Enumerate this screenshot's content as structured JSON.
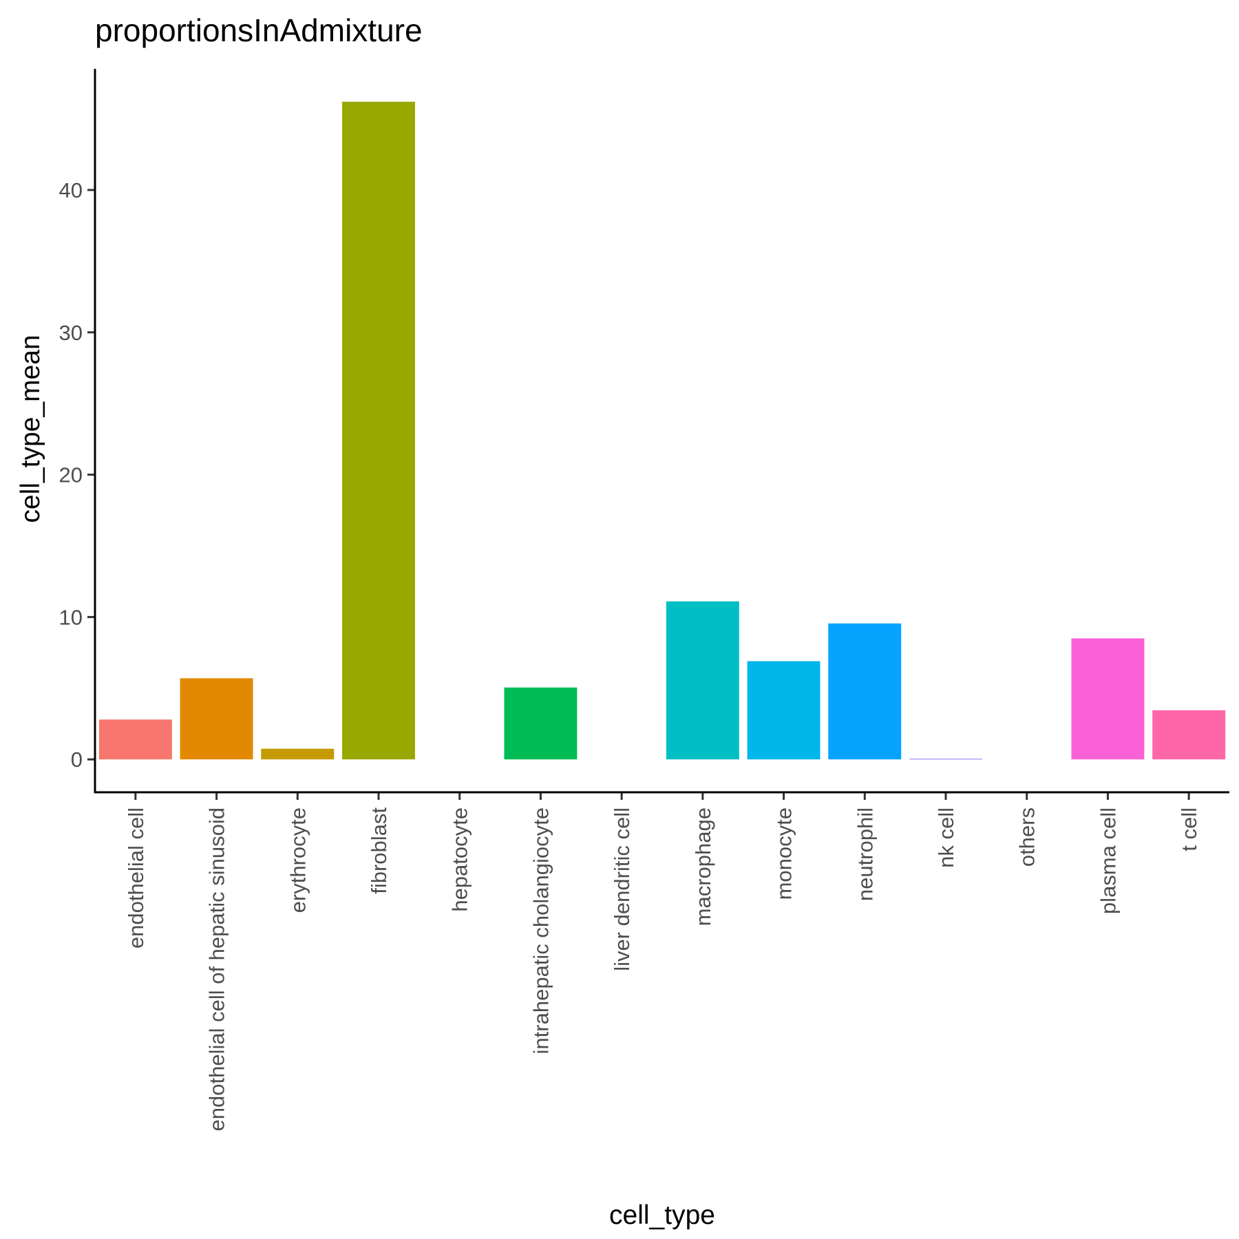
{
  "chart_data": {
    "type": "bar",
    "title": "proportionsInAdmixture",
    "xlabel": "cell_type",
    "ylabel": "cell_type_mean",
    "categories": [
      "endothelial cell",
      "endothelial cell of hepatic sinusoid",
      "erythrocyte",
      "fibroblast",
      "hepatocyte",
      "intrahepatic cholangiocyte",
      "liver dendritic cell",
      "macrophage",
      "monocyte",
      "neutrophil",
      "nk cell",
      "others",
      "plasma cell",
      "t cell"
    ],
    "values": [
      2.8,
      5.7,
      0.75,
      46.2,
      0,
      5.05,
      0,
      11.1,
      6.9,
      9.55,
      0.05,
      0,
      8.5,
      3.45
    ],
    "colors": [
      "#F8766D",
      "#E38900",
      "#C49A00",
      "#99A800",
      "#53B400",
      "#00BC56",
      "#00C094",
      "#00BFC4",
      "#00B6EB",
      "#06A4FF",
      "#A58AFF",
      "#DF70F8",
      "#FB61D7",
      "#FF66A8"
    ],
    "yticks": [
      0,
      10,
      20,
      30,
      40
    ],
    "ylim": [
      -2.31,
      48.51
    ],
    "grid": false,
    "legend": "none"
  }
}
